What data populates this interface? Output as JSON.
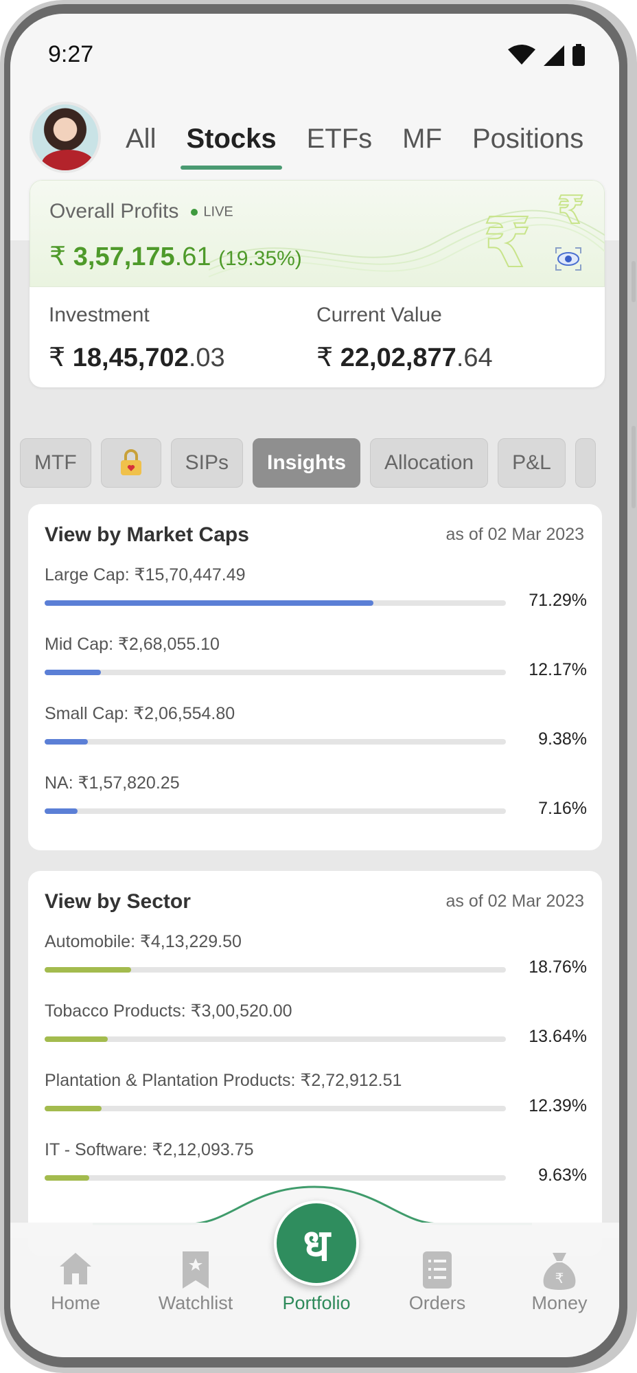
{
  "status_bar": {
    "time": "9:27"
  },
  "tabs": [
    "All",
    "Stocks",
    "ETFs",
    "MF",
    "Positions"
  ],
  "profits": {
    "label": "Overall Profits",
    "live": "LIVE",
    "currency": "₹",
    "value_main": "3,57,175",
    "value_decimal": ".61",
    "percent": "(19.35%)"
  },
  "investment": {
    "label": "Investment",
    "currency": "₹",
    "main": "18,45,702",
    "decimal": ".03"
  },
  "current_value": {
    "label": "Current Value",
    "currency": "₹",
    "main": "22,02,877",
    "decimal": ".64"
  },
  "chips": [
    "MTF",
    "lock",
    "SIPs",
    "Insights",
    "Allocation",
    "P&L"
  ],
  "market_caps": {
    "title": "View by Market Caps",
    "date": "as of 02 Mar 2023",
    "color": "#5b7fd6",
    "rows": [
      {
        "label": "Large Cap:  ₹15,70,447.49",
        "pct": "71.29%",
        "fraction": 0.7129
      },
      {
        "label": "Mid Cap:  ₹2,68,055.10",
        "pct": "12.17%",
        "fraction": 0.1217
      },
      {
        "label": "Small Cap:  ₹2,06,554.80",
        "pct": "9.38%",
        "fraction": 0.0938
      },
      {
        "label": "NA:  ₹1,57,820.25",
        "pct": "7.16%",
        "fraction": 0.0716
      }
    ]
  },
  "sector": {
    "title": "View by Sector",
    "date": "as of 02 Mar 2023",
    "color": "#a3bb4e",
    "rows": [
      {
        "label": "Automobile:  ₹4,13,229.50",
        "pct": "18.76%",
        "fraction": 0.1876
      },
      {
        "label": "Tobacco Products:  ₹3,00,520.00",
        "pct": "13.64%",
        "fraction": 0.1364
      },
      {
        "label": "Plantation & Plantation Products:  ₹2,72,912.51",
        "pct": "12.39%",
        "fraction": 0.1239
      },
      {
        "label": "IT - Software:  ₹2,12,093.75",
        "pct": "9.63%",
        "fraction": 0.0963
      }
    ]
  },
  "bottom_nav": [
    {
      "label": "Home",
      "icon": "home-icon"
    },
    {
      "label": "Watchlist",
      "icon": "watchlist-icon"
    },
    {
      "label": "Portfolio",
      "icon": "portfolio-icon"
    },
    {
      "label": "Orders",
      "icon": "orders-icon"
    },
    {
      "label": "Money",
      "icon": "money-bag-icon"
    }
  ],
  "portfolio_glyph": "ध"
}
